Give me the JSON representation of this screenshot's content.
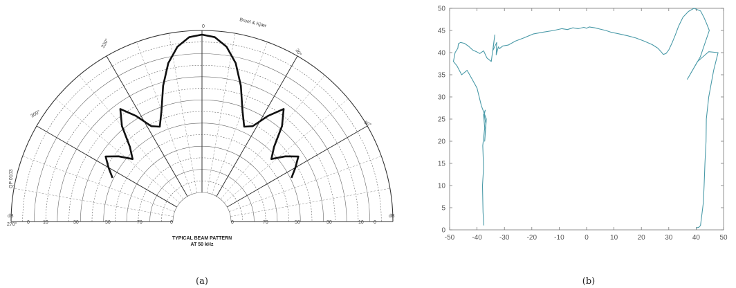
{
  "panels": [
    {
      "caption": "(a)"
    },
    {
      "caption": "(b)"
    }
  ],
  "polar_labels": {
    "maker": "Bruel & Kjær",
    "type_code": "QP 0103",
    "footer_line1": "TYPICAL BEAM PATTERN",
    "footer_line2": "AT 50 kHz",
    "angle_labels": [
      "0",
      "330°",
      "30°",
      "300°",
      "60°",
      "270°"
    ],
    "left_scale": [
      "0",
      "10",
      "30",
      "50",
      "70"
    ],
    "right_scale": [
      "0",
      "70",
      "50",
      "30",
      "10",
      "0"
    ],
    "end_right": "dB",
    "end_left": "dB"
  },
  "chart_data": [
    {
      "type": "line",
      "subtype": "polar",
      "title": "TYPICAL BEAM PATTERN AT 50 kHz",
      "range_deg": [
        -90,
        90
      ],
      "angular_grid_deg": [
        -90,
        -60,
        -30,
        0,
        30,
        60,
        90
      ],
      "radial_unit": "dB",
      "angle_deg": [
        -64,
        -60,
        -56,
        -52,
        -48,
        -44,
        -40,
        -36,
        -32,
        -28,
        -24,
        -20,
        -16,
        -12,
        -8,
        -4,
        0,
        4,
        8,
        12,
        16,
        20,
        24,
        28,
        32,
        36,
        40,
        44,
        48,
        52,
        56,
        60,
        64
      ],
      "radius_fraction": [
        0.48,
        0.52,
        0.56,
        0.51,
        0.45,
        0.5,
        0.6,
        0.67,
        0.6,
        0.52,
        0.5,
        0.57,
        0.68,
        0.78,
        0.85,
        0.89,
        0.9,
        0.89,
        0.85,
        0.78,
        0.68,
        0.57,
        0.5,
        0.52,
        0.6,
        0.67,
        0.6,
        0.5,
        0.45,
        0.51,
        0.56,
        0.52,
        0.48
      ],
      "series_color": "#111111"
    },
    {
      "type": "line",
      "xlim": [
        -50,
        50
      ],
      "ylim": [
        0,
        50
      ],
      "xticks": [
        -50,
        -40,
        -30,
        -20,
        -10,
        0,
        10,
        20,
        30,
        40,
        50
      ],
      "yticks": [
        0,
        5,
        10,
        15,
        20,
        25,
        30,
        35,
        40,
        45,
        50
      ],
      "series_color": "#4a9aa8",
      "x": [
        -37.5,
        -37.8,
        -38.0,
        -37.6,
        -37.9,
        -37.2,
        -37.6,
        -37.0,
        -37.4,
        -36.8,
        -37.2,
        -36.6,
        -38.4,
        -40.0,
        -41.8,
        -43.6,
        -45.6,
        -47.3,
        -48.6,
        -48.0,
        -47.0,
        -46.8,
        -46.0,
        -44.6,
        -43.0,
        -41.6,
        -40.2,
        -39.0,
        -37.6,
        -36.4,
        -34.8,
        -33.5,
        -34.2,
        -32.8,
        -33.0,
        -32.2,
        -31.8,
        -30.6,
        -28.6,
        -26.0,
        -23.0,
        -19.5,
        -16.0,
        -12.0,
        -9.0,
        -7.0,
        -5.0,
        -3.0,
        -1.0,
        0.0,
        1.0,
        3.0,
        5.0,
        7.0,
        9.0,
        12.0,
        15.0,
        18.0,
        21.0,
        24.0,
        26.0,
        27.2,
        28.0,
        29.0,
        30.0,
        31.2,
        32.4,
        33.6,
        35.2,
        37.2,
        39.2,
        41.6,
        42.8,
        43.8,
        44.8,
        41.5,
        36.8,
        40.5,
        44.6,
        48.0,
        46.4,
        44.6,
        43.7,
        43.6,
        43.2,
        42.9,
        42.6,
        42.0,
        41.6,
        41.0,
        40.0
      ],
      "y": [
        1.0,
        4.0,
        10.0,
        14.0,
        19.0,
        23.0,
        26.0,
        27.0,
        26.0,
        24.0,
        20.0,
        25.0,
        28.0,
        32.0,
        34.0,
        36.0,
        35.0,
        37.0,
        38.0,
        40.0,
        41.0,
        42.0,
        42.3,
        42.1,
        41.4,
        40.6,
        40.2,
        39.8,
        40.4,
        38.8,
        38.0,
        44.0,
        40.5,
        42.3,
        39.5,
        41.3,
        40.9,
        41.5,
        41.7,
        42.6,
        43.3,
        44.2,
        44.6,
        45.0,
        45.4,
        45.2,
        45.6,
        45.4,
        45.7,
        45.5,
        45.8,
        45.6,
        45.3,
        45.0,
        44.6,
        44.2,
        43.8,
        43.3,
        42.6,
        41.8,
        41.0,
        40.2,
        39.6,
        39.8,
        40.6,
        42.2,
        44.0,
        46.0,
        48.0,
        49.3,
        50.0,
        49.4,
        48.0,
        46.6,
        45.0,
        39.0,
        34.0,
        38.0,
        40.2,
        40.0,
        36.0,
        30.0,
        25.0,
        20.0,
        15.0,
        10.0,
        6.0,
        3.0,
        1.0,
        0.6,
        0.4
      ]
    }
  ]
}
